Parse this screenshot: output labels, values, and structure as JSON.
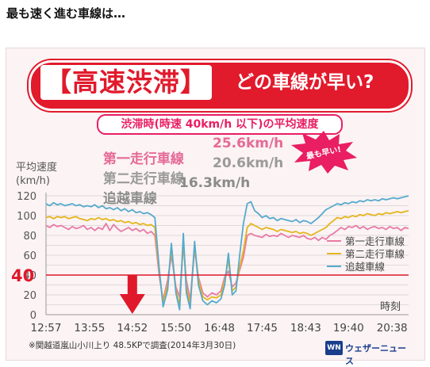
{
  "heading": "最も速く進む車線は…",
  "banner": {
    "main": "【高速渋滞】",
    "sub": "どの車線が早い?"
  },
  "condition_label": "渋滞時(時速 40km/h 以下)の平均速度",
  "stats": [
    {
      "lane": "第一走行車線",
      "value": "25.6km/h"
    },
    {
      "lane": "第二走行車線",
      "value": "20.6km/h"
    },
    {
      "lane": "追越車線",
      "value": "16.3km/h"
    }
  ],
  "badge": "最も早い!",
  "footnote": "※関越道嵐山小川上り 48.5KPで調査(2014年3月30日)",
  "logo": {
    "mark": "WN",
    "text": "ウェザーニュース"
  },
  "colors": {
    "lane1": "#e87aa5",
    "lane2": "#e5b51b",
    "lane3": "#55aacd",
    "threshold": "#e0182b",
    "accent": "#e11a2c"
  },
  "chart_data": {
    "type": "line",
    "ylabel": "平均速度\n(km/h)",
    "ylabel_line1": "平均速度",
    "ylabel_line2": "(km/h)",
    "xlabel": "時刻",
    "ylim": [
      0,
      120
    ],
    "yticks": [
      0,
      10,
      20,
      30,
      40,
      50,
      60,
      70,
      80,
      90,
      100,
      110,
      120
    ],
    "ytick_labels": [
      "0",
      "",
      "20",
      "",
      "40",
      "",
      "60",
      "",
      "80",
      "",
      "100",
      "",
      "120"
    ],
    "threshold": {
      "value": 40,
      "label": "40"
    },
    "arrow_time": "14:52",
    "xticks": [
      "12:57",
      "13:55",
      "14:52",
      "15:50",
      "16:48",
      "17:45",
      "18:43",
      "19:40",
      "20:38"
    ],
    "time_range": [
      "12:57",
      "21:00"
    ],
    "legend_position": "right",
    "series": [
      {
        "name": "第一走行車線",
        "color": "#e87aa5",
        "points": [
          [
            "12:57",
            90
          ],
          [
            "13:02",
            88
          ],
          [
            "13:07",
            91
          ],
          [
            "13:12",
            89
          ],
          [
            "13:17",
            90
          ],
          [
            "13:22",
            88
          ],
          [
            "13:27",
            86
          ],
          [
            "13:32",
            89
          ],
          [
            "13:37",
            87
          ],
          [
            "13:42",
            88
          ],
          [
            "13:47",
            90
          ],
          [
            "13:52",
            86
          ],
          [
            "13:57",
            88
          ],
          [
            "14:02",
            85
          ],
          [
            "14:07",
            88
          ],
          [
            "14:12",
            86
          ],
          [
            "14:17",
            92
          ],
          [
            "14:22",
            85
          ],
          [
            "14:27",
            91
          ],
          [
            "14:32",
            87
          ],
          [
            "14:37",
            84
          ],
          [
            "14:42",
            86
          ],
          [
            "14:47",
            88
          ],
          [
            "14:52",
            85
          ],
          [
            "14:57",
            87
          ],
          [
            "15:02",
            84
          ],
          [
            "15:07",
            86
          ],
          [
            "15:12",
            82
          ],
          [
            "15:17",
            84
          ],
          [
            "15:22",
            80
          ],
          [
            "15:28",
            38
          ],
          [
            "15:33",
            15
          ],
          [
            "15:39",
            35
          ],
          [
            "15:44",
            60
          ],
          [
            "15:50",
            28
          ],
          [
            "15:55",
            18
          ],
          [
            "16:00",
            70
          ],
          [
            "16:04",
            35
          ],
          [
            "16:09",
            15
          ],
          [
            "16:15",
            66
          ],
          [
            "16:20",
            38
          ],
          [
            "16:26",
            22
          ],
          [
            "16:32",
            18
          ],
          [
            "16:38",
            22
          ],
          [
            "16:44",
            20
          ],
          [
            "16:50",
            24
          ],
          [
            "16:55",
            38
          ],
          [
            "17:00",
            44
          ],
          [
            "17:05",
            28
          ],
          [
            "17:10",
            32
          ],
          [
            "17:15",
            45
          ],
          [
            "17:20",
            58
          ],
          [
            "17:25",
            80
          ],
          [
            "17:30",
            82
          ],
          [
            "17:35",
            80
          ],
          [
            "17:40",
            79
          ],
          [
            "17:45",
            78
          ],
          [
            "17:50",
            81
          ],
          [
            "17:55",
            79
          ],
          [
            "18:00",
            80
          ],
          [
            "18:05",
            79
          ],
          [
            "18:10",
            82
          ],
          [
            "18:15",
            80
          ],
          [
            "18:20",
            78
          ],
          [
            "18:25",
            80
          ],
          [
            "18:30",
            79
          ],
          [
            "18:35",
            78
          ],
          [
            "18:40",
            80
          ],
          [
            "18:45",
            77
          ],
          [
            "18:50",
            76
          ],
          [
            "18:55",
            78
          ],
          [
            "19:00",
            75
          ],
          [
            "19:05",
            78
          ],
          [
            "19:10",
            76
          ],
          [
            "19:15",
            80
          ],
          [
            "19:20",
            82
          ],
          [
            "19:25",
            85
          ],
          [
            "19:30",
            88
          ],
          [
            "19:35",
            86
          ],
          [
            "19:40",
            89
          ],
          [
            "19:45",
            88
          ],
          [
            "19:50",
            90
          ],
          [
            "19:55",
            87
          ],
          [
            "20:00",
            89
          ],
          [
            "20:05",
            86
          ],
          [
            "20:10",
            88
          ],
          [
            "20:15",
            89
          ],
          [
            "20:20",
            87
          ],
          [
            "20:25",
            88
          ],
          [
            "20:30",
            86
          ],
          [
            "20:35",
            89
          ],
          [
            "20:40",
            87
          ],
          [
            "20:45",
            88
          ],
          [
            "20:50",
            85
          ],
          [
            "20:55",
            88
          ],
          [
            "21:00",
            87
          ]
        ]
      },
      {
        "name": "第二走行車線",
        "color": "#e5b51b",
        "points": [
          [
            "12:57",
            98
          ],
          [
            "13:02",
            99
          ],
          [
            "13:07",
            97
          ],
          [
            "13:12",
            99
          ],
          [
            "13:17",
            98
          ],
          [
            "13:22",
            99
          ],
          [
            "13:27",
            97
          ],
          [
            "13:32",
            98
          ],
          [
            "13:37",
            99
          ],
          [
            "13:42",
            97
          ],
          [
            "13:47",
            96
          ],
          [
            "13:52",
            95
          ],
          [
            "13:57",
            97
          ],
          [
            "14:02",
            96
          ],
          [
            "14:07",
            98
          ],
          [
            "14:12",
            96
          ],
          [
            "14:17",
            97
          ],
          [
            "14:22",
            95
          ],
          [
            "14:27",
            96
          ],
          [
            "14:32",
            94
          ],
          [
            "14:37",
            95
          ],
          [
            "14:42",
            93
          ],
          [
            "14:47",
            94
          ],
          [
            "14:52",
            92
          ],
          [
            "14:57",
            93
          ],
          [
            "15:02",
            91
          ],
          [
            "15:07",
            92
          ],
          [
            "15:12",
            90
          ],
          [
            "15:17",
            91
          ],
          [
            "15:22",
            88
          ],
          [
            "15:28",
            42
          ],
          [
            "15:33",
            12
          ],
          [
            "15:39",
            30
          ],
          [
            "15:44",
            66
          ],
          [
            "15:50",
            25
          ],
          [
            "15:55",
            10
          ],
          [
            "16:00",
            75
          ],
          [
            "16:04",
            28
          ],
          [
            "16:09",
            10
          ],
          [
            "16:15",
            70
          ],
          [
            "16:20",
            35
          ],
          [
            "16:26",
            18
          ],
          [
            "16:32",
            15
          ],
          [
            "16:38",
            18
          ],
          [
            "16:44",
            17
          ],
          [
            "16:50",
            20
          ],
          [
            "16:55",
            35
          ],
          [
            "17:00",
            55
          ],
          [
            "17:05",
            24
          ],
          [
            "17:10",
            28
          ],
          [
            "17:15",
            48
          ],
          [
            "17:20",
            65
          ],
          [
            "17:25",
            88
          ],
          [
            "17:30",
            92
          ],
          [
            "17:35",
            90
          ],
          [
            "17:40",
            88
          ],
          [
            "17:45",
            86
          ],
          [
            "17:50",
            88
          ],
          [
            "17:55",
            87
          ],
          [
            "18:00",
            86
          ],
          [
            "18:05",
            84
          ],
          [
            "18:10",
            86
          ],
          [
            "18:15",
            85
          ],
          [
            "18:20",
            84
          ],
          [
            "18:25",
            83
          ],
          [
            "18:30",
            84
          ],
          [
            "18:35",
            82
          ],
          [
            "18:40",
            83
          ],
          [
            "18:45",
            82
          ],
          [
            "18:50",
            80
          ],
          [
            "18:55",
            82
          ],
          [
            "19:00",
            84
          ],
          [
            "19:05",
            86
          ],
          [
            "19:10",
            88
          ],
          [
            "19:15",
            92
          ],
          [
            "19:20",
            95
          ],
          [
            "19:25",
            98
          ],
          [
            "19:30",
            97
          ],
          [
            "19:35",
            99
          ],
          [
            "19:40",
            98
          ],
          [
            "19:45",
            100
          ],
          [
            "19:50",
            99
          ],
          [
            "19:55",
            101
          ],
          [
            "20:00",
            100
          ],
          [
            "20:05",
            102
          ],
          [
            "20:10",
            101
          ],
          [
            "20:15",
            100
          ],
          [
            "20:20",
            102
          ],
          [
            "20:25",
            101
          ],
          [
            "20:30",
            103
          ],
          [
            "20:35",
            102
          ],
          [
            "20:40",
            103
          ],
          [
            "20:45",
            104
          ],
          [
            "20:50",
            103
          ],
          [
            "20:55",
            104
          ],
          [
            "21:00",
            105
          ]
        ]
      },
      {
        "name": "追越車線",
        "color": "#55aacd",
        "points": [
          [
            "12:57",
            112
          ],
          [
            "13:02",
            110
          ],
          [
            "13:07",
            113
          ],
          [
            "13:12",
            111
          ],
          [
            "13:17",
            112
          ],
          [
            "13:22",
            110
          ],
          [
            "13:27",
            111
          ],
          [
            "13:32",
            112
          ],
          [
            "13:37",
            110
          ],
          [
            "13:42",
            111
          ],
          [
            "13:47",
            109
          ],
          [
            "13:52",
            110
          ],
          [
            "13:57",
            109
          ],
          [
            "14:02",
            111
          ],
          [
            "14:07",
            108
          ],
          [
            "14:12",
            110
          ],
          [
            "14:17",
            107
          ],
          [
            "14:22",
            108
          ],
          [
            "14:27",
            106
          ],
          [
            "14:32",
            108
          ],
          [
            "14:37",
            105
          ],
          [
            "14:42",
            107
          ],
          [
            "14:47",
            104
          ],
          [
            "14:52",
            106
          ],
          [
            "14:57",
            103
          ],
          [
            "15:02",
            104
          ],
          [
            "15:07",
            102
          ],
          [
            "15:12",
            103
          ],
          [
            "15:17",
            101
          ],
          [
            "15:22",
            98
          ],
          [
            "15:28",
            45
          ],
          [
            "15:33",
            8
          ],
          [
            "15:39",
            25
          ],
          [
            "15:44",
            72
          ],
          [
            "15:50",
            22
          ],
          [
            "15:55",
            5
          ],
          [
            "16:00",
            82
          ],
          [
            "16:04",
            22
          ],
          [
            "16:09",
            6
          ],
          [
            "16:15",
            74
          ],
          [
            "16:20",
            30
          ],
          [
            "16:26",
            14
          ],
          [
            "16:32",
            10
          ],
          [
            "16:38",
            14
          ],
          [
            "16:44",
            12
          ],
          [
            "16:50",
            16
          ],
          [
            "16:55",
            30
          ],
          [
            "17:00",
            62
          ],
          [
            "17:05",
            20
          ],
          [
            "17:10",
            24
          ],
          [
            "17:15",
            60
          ],
          [
            "17:20",
            92
          ],
          [
            "17:25",
            112
          ],
          [
            "17:30",
            114
          ],
          [
            "17:35",
            105
          ],
          [
            "17:40",
            102
          ],
          [
            "17:45",
            98
          ],
          [
            "17:50",
            100
          ],
          [
            "17:55",
            97
          ],
          [
            "18:00",
            98
          ],
          [
            "18:05",
            95
          ],
          [
            "18:10",
            97
          ],
          [
            "18:15",
            96
          ],
          [
            "18:20",
            95
          ],
          [
            "18:25",
            94
          ],
          [
            "18:30",
            96
          ],
          [
            "18:35",
            93
          ],
          [
            "18:40",
            95
          ],
          [
            "18:45",
            94
          ],
          [
            "18:50",
            92
          ],
          [
            "18:55",
            95
          ],
          [
            "19:00",
            98
          ],
          [
            "19:05",
            102
          ],
          [
            "19:10",
            106
          ],
          [
            "19:15",
            108
          ],
          [
            "19:20",
            110
          ],
          [
            "19:25",
            112
          ],
          [
            "19:30",
            111
          ],
          [
            "19:35",
            113
          ],
          [
            "19:40",
            112
          ],
          [
            "19:45",
            114
          ],
          [
            "19:50",
            113
          ],
          [
            "19:55",
            115
          ],
          [
            "20:00",
            114
          ],
          [
            "20:05",
            116
          ],
          [
            "20:10",
            115
          ],
          [
            "20:15",
            116
          ],
          [
            "20:20",
            115
          ],
          [
            "20:25",
            117
          ],
          [
            "20:30",
            116
          ],
          [
            "20:35",
            117
          ],
          [
            "20:40",
            118
          ],
          [
            "20:45",
            117
          ],
          [
            "20:50",
            118
          ],
          [
            "20:55",
            119
          ],
          [
            "21:00",
            120
          ]
        ]
      }
    ]
  }
}
